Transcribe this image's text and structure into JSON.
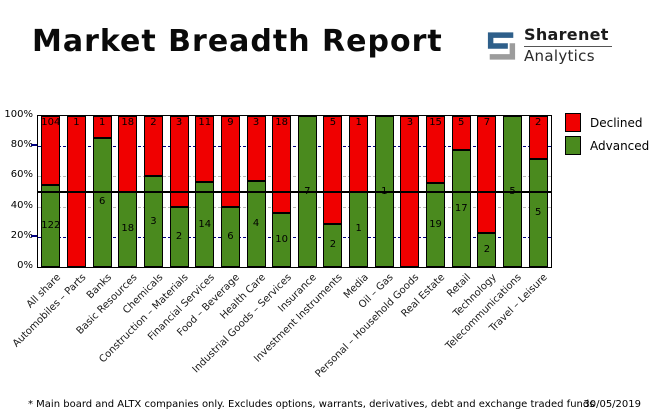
{
  "header": {
    "title": "Market Breadth Report",
    "logo": {
      "brand": "Sharenet",
      "sub": "Analytics"
    }
  },
  "legend": [
    {
      "label": "Declined",
      "color": "#f00000"
    },
    {
      "label": "Advanced",
      "color": "#4a8a1e"
    }
  ],
  "chart_data": {
    "type": "bar",
    "stacked": true,
    "normalized": "percent",
    "title": "Market Breadth Report",
    "categories": [
      "All share",
      "Automobiles – Parts",
      "Banks",
      "Basic Resources",
      "Chemicals",
      "Construction – Materials",
      "Financial Services",
      "Food – Beverage",
      "Health Care",
      "Industrial Goods – Services",
      "Insurance",
      "Investment Instruments",
      "Media",
      "Oil – Gas",
      "Personal – Household Goods",
      "Real Estate",
      "Retail",
      "Technology",
      "Telecommunications",
      "Travel – Leisure"
    ],
    "series": [
      {
        "name": "Declined",
        "color": "#f00000",
        "values": [
          104,
          1,
          1,
          18,
          2,
          3,
          11,
          9,
          3,
          18,
          0,
          5,
          1,
          0,
          3,
          15,
          5,
          7,
          0,
          2
        ]
      },
      {
        "name": "Advanced",
        "color": "#4a8a1e",
        "values": [
          122,
          0,
          6,
          18,
          3,
          2,
          14,
          6,
          4,
          10,
          7,
          2,
          1,
          1,
          0,
          19,
          17,
          2,
          5,
          5
        ]
      }
    ],
    "yticks": [
      "100%",
      "80%",
      "60%",
      "40%",
      "20%",
      "0%"
    ],
    "ylim": [
      0,
      100
    ],
    "grid": {
      "dashed_navy_levels": [
        80,
        20
      ],
      "dashed_gray_levels": [
        60,
        40
      ],
      "reference_line": 50
    },
    "legend_position": "top-right"
  },
  "footer": {
    "note": "* Main board and ALTX companies only. Excludes options, warrants, derivatives, debt and exchange traded funds",
    "date": "30/05/2019"
  }
}
